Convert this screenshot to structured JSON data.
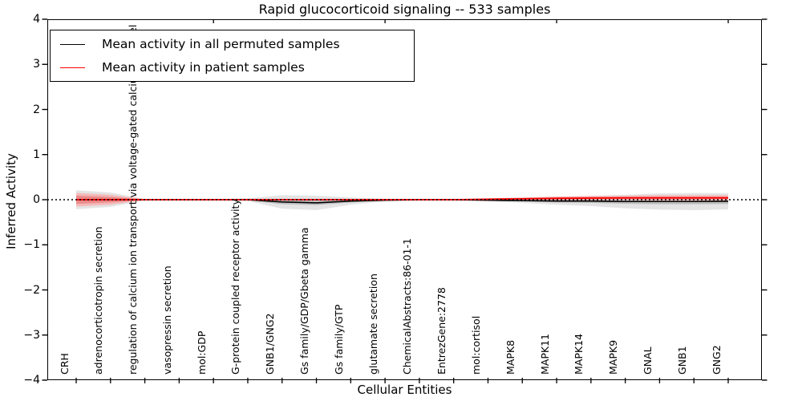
{
  "title": "Rapid glucocorticoid signaling -- 533 samples",
  "axes": {
    "ylabel": "Inferred Activity",
    "xlabel": "Cellular Entities",
    "ytick_labels": [
      "4",
      "3",
      "2",
      "1",
      "0",
      "-1",
      "-2",
      "-3",
      "-4"
    ],
    "ylim": [
      -4,
      4
    ]
  },
  "legend": {
    "items": [
      {
        "label": "Mean activity in all permuted samples",
        "color": "#000000"
      },
      {
        "label": "Mean activity in patient samples",
        "color": "#ff0000"
      }
    ]
  },
  "chart_data": {
    "type": "line",
    "title": "Rapid glucocorticoid signaling -- 533 samples",
    "xlabel": "Cellular Entities",
    "ylabel": "Inferred Activity",
    "ylim": [
      -4,
      4
    ],
    "grid": false,
    "legend_position": "upper left",
    "zero_line": {
      "style": "dotted",
      "color": "#000000",
      "value": 0
    },
    "categories": [
      "CRH",
      "adrenocorticotropin secretion",
      "regulation of calcium ion transport via voltage-gated calcium channel",
      "vasopressin secretion",
      "mol:GDP",
      "G-protein coupled receptor activity",
      "GNB1/GNG2",
      "Gs family/GDP/Gbeta gamma",
      "Gs family/GTP",
      "glutamate secretion",
      "ChemicalAbstracts:86-01-1",
      "EntrezGene:2778",
      "mol:cortisol",
      "MAPK8",
      "MAPK11",
      "MAPK14",
      "MAPK9",
      "GNAL",
      "GNB1",
      "GNG2"
    ],
    "series": [
      {
        "name": "Mean activity in all permuted samples",
        "line_color": "#000000",
        "band_color_outer": "#e4e4e4",
        "band_color_inner": "#bdbdbd",
        "mean": [
          0,
          0,
          0,
          0,
          0,
          0,
          -0.05,
          -0.07,
          -0.03,
          -0.01,
          0,
          0,
          -0.01,
          -0.02,
          -0.03,
          -0.03,
          -0.04,
          -0.04,
          -0.04,
          -0.035
        ],
        "sd_outer": [
          0.21,
          0.16,
          0.015,
          0.012,
          0.012,
          0.03,
          0.15,
          0.16,
          0.08,
          0.03,
          0.02,
          0.02,
          0.03,
          0.05,
          0.08,
          0.11,
          0.15,
          0.18,
          0.19,
          0.18
        ],
        "sd_inner": [
          0.1,
          0.07,
          0.01,
          0.008,
          0.008,
          0.015,
          0.05,
          0.05,
          0.03,
          0.015,
          0.01,
          0.01,
          0.015,
          0.02,
          0.03,
          0.04,
          0.05,
          0.06,
          0.06,
          0.06
        ]
      },
      {
        "name": "Mean activity in patient samples",
        "line_color": "#ff0000",
        "band_color_outer": "#f4b9b9",
        "band_color_inner": "#ea8a8a",
        "mean": [
          0,
          0,
          0,
          0,
          0,
          0,
          0,
          0,
          0,
          0,
          0,
          0,
          0.01,
          0.02,
          0.03,
          0.035,
          0.04,
          0.04,
          0.04,
          0.04
        ],
        "sd_outer": [
          0.15,
          0.11,
          0.012,
          0.01,
          0.01,
          0.012,
          0.012,
          0.012,
          0.012,
          0.01,
          0.01,
          0.01,
          0.02,
          0.03,
          0.04,
          0.05,
          0.05,
          0.06,
          0.06,
          0.06
        ],
        "sd_inner": [
          0.09,
          0.06,
          0.008,
          0.006,
          0.006,
          0.008,
          0.008,
          0.008,
          0.008,
          0.006,
          0.006,
          0.006,
          0.01,
          0.015,
          0.02,
          0.025,
          0.025,
          0.03,
          0.03,
          0.03
        ]
      }
    ]
  }
}
